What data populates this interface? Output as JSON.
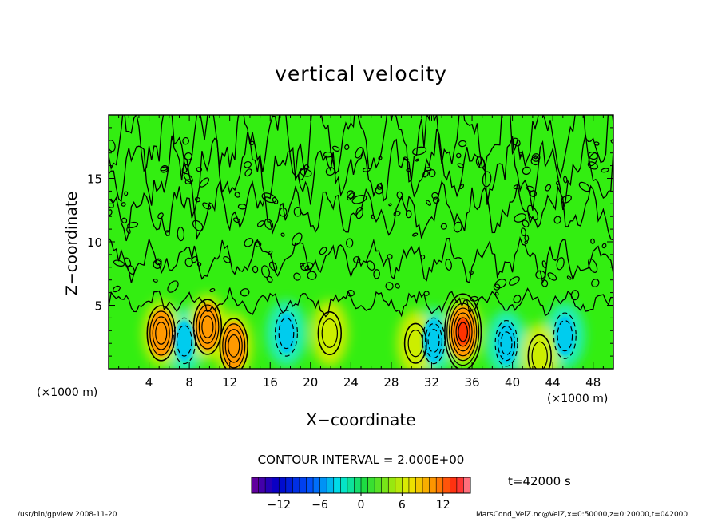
{
  "page": {
    "footer_left": "/usr/bin/gpview   2008-11-20",
    "footer_right": "MarsCond_VelZ.nc@VelZ,x=0:50000,z=0:20000,t=042000",
    "contour_interval_label": "CONTOUR INTERVAL = 2.000E+00",
    "time_label": "t=42000  s"
  },
  "chart_data": {
    "type": "heatmap",
    "title": "vertical velocity",
    "xlabel": "X−coordinate",
    "ylabel": "Z−coordinate",
    "x_unit_label": "(×1000 m)",
    "z_unit_label": "(×1000 m)",
    "xlim": [
      0,
      50
    ],
    "ylim": [
      0,
      20
    ],
    "x_ticks": [
      4,
      8,
      12,
      16,
      20,
      24,
      28,
      32,
      36,
      40,
      44,
      48
    ],
    "y_ticks": [
      5,
      10,
      15
    ],
    "contour_interval": 2.0,
    "colorbar": {
      "range": [
        -16,
        16
      ],
      "ticks": [
        -12,
        -6,
        0,
        6,
        12
      ],
      "tick_labels": [
        "−12",
        "−6",
        "0",
        "6",
        "12"
      ]
    },
    "updrafts": [
      {
        "x": 5.2,
        "z": 2.8,
        "w": 8
      },
      {
        "x": 9.8,
        "z": 3.3,
        "w": 8
      },
      {
        "x": 12.4,
        "z": 1.8,
        "w": 8
      },
      {
        "x": 21.9,
        "z": 2.8,
        "w": 4
      },
      {
        "x": 30.4,
        "z": 2.0,
        "w": 3
      },
      {
        "x": 35.1,
        "z": 2.9,
        "w": 15
      },
      {
        "x": 42.7,
        "z": 1.0,
        "w": 4
      }
    ],
    "downdrafts": [
      {
        "x": 7.5,
        "z": 2.2,
        "w": -4
      },
      {
        "x": 17.6,
        "z": 2.8,
        "w": -4
      },
      {
        "x": 32.2,
        "z": 2.2,
        "w": -6
      },
      {
        "x": 39.4,
        "z": 2.0,
        "w": -5
      },
      {
        "x": 45.2,
        "z": 2.6,
        "w": -4
      }
    ],
    "colors": {
      "background": "#33ee11",
      "upward_low": "#ccee00",
      "upward_mid": "#ff9900",
      "upward_high": "#ff3300",
      "downward_low": "#22eebb",
      "downward_mid": "#00ccee",
      "contour": "#000000"
    }
  }
}
